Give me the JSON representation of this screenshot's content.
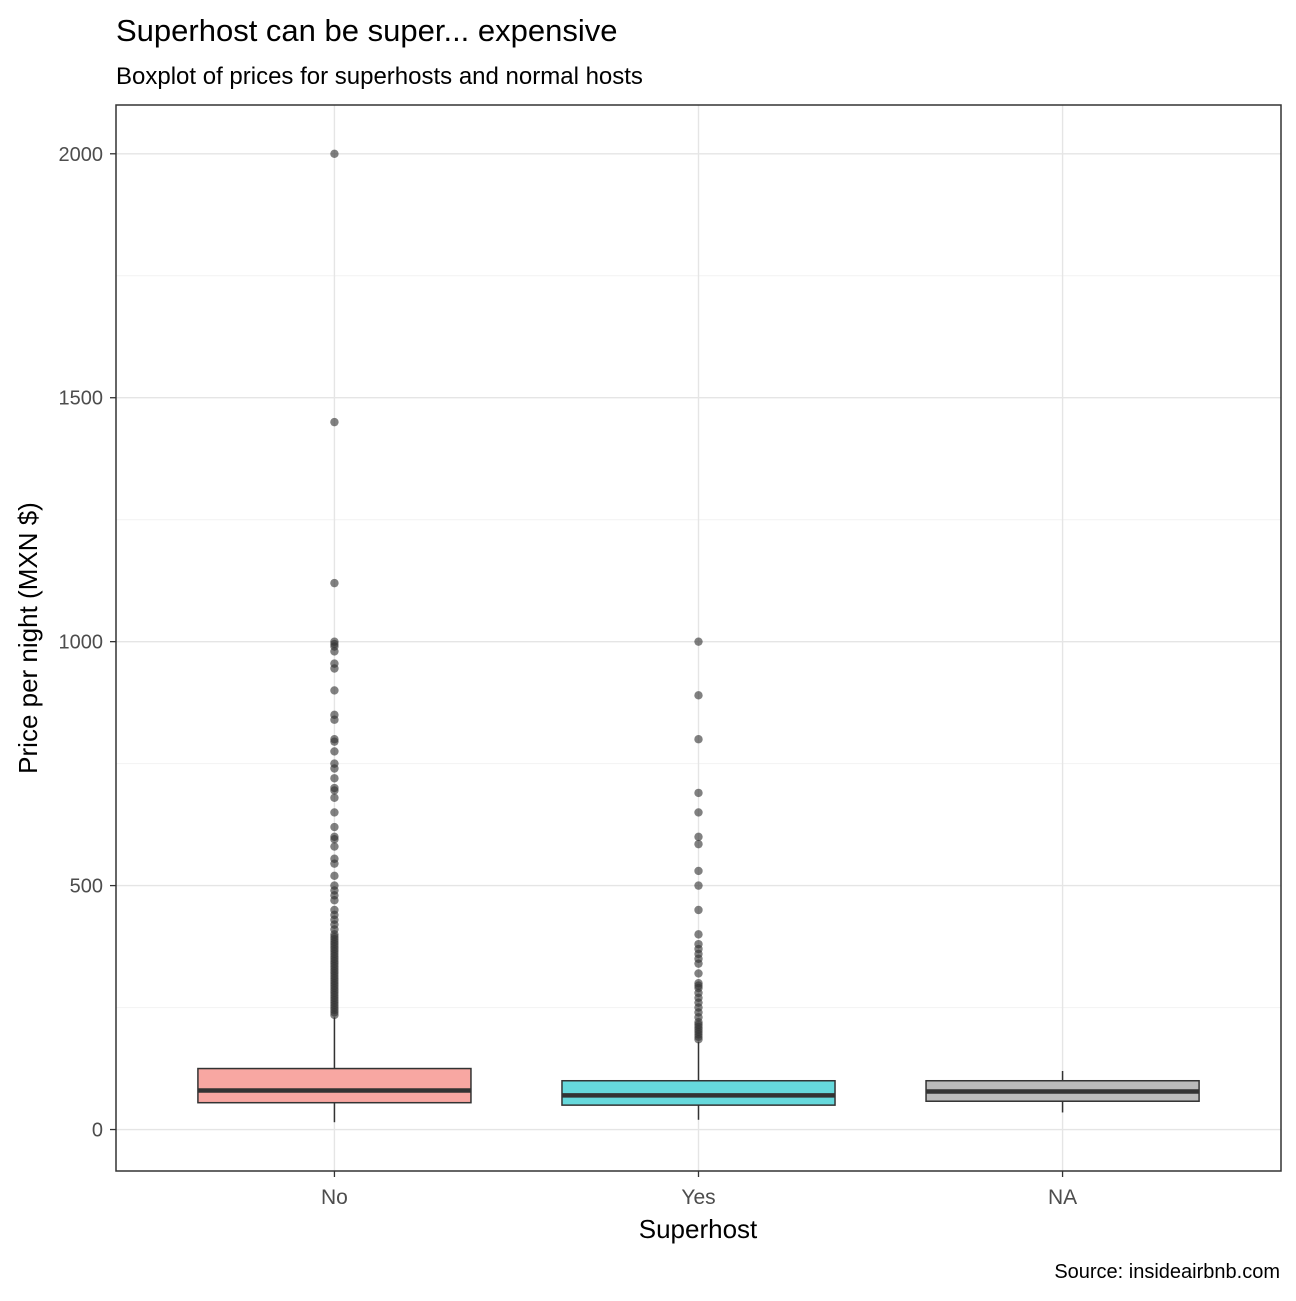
{
  "chart_data": {
    "type": "boxplot",
    "title": "Superhost can be super... expensive",
    "subtitle": "Boxplot of prices for superhosts and normal hosts",
    "xlabel": "Superhost",
    "ylabel": "Price per night (MXN $)",
    "caption": "Source: insideairbnb.com",
    "ylim": [
      -85,
      2100
    ],
    "y_ticks": [
      0,
      500,
      1000,
      1500,
      2000
    ],
    "y_minor_ticks": [
      250,
      750,
      1250,
      1750
    ],
    "categories": [
      "No",
      "Yes",
      "NA"
    ],
    "boxes": [
      {
        "name": "No",
        "color": "#f8a7a2",
        "min": 15,
        "q1": 55,
        "median": 80,
        "q3": 125,
        "max": 230,
        "outliers": [
          2000,
          1450,
          1120,
          1000,
          995,
          990,
          980,
          955,
          945,
          900,
          850,
          840,
          800,
          795,
          775,
          750,
          740,
          720,
          700,
          695,
          680,
          650,
          620,
          600,
          595,
          580,
          555,
          545,
          520,
          500,
          490,
          480,
          470,
          450,
          440,
          430,
          420,
          410,
          400,
          395,
          390,
          385,
          380,
          375,
          370,
          365,
          360,
          355,
          350,
          345,
          340,
          335,
          330,
          325,
          320,
          315,
          310,
          305,
          300,
          295,
          290,
          285,
          280,
          275,
          270,
          265,
          260,
          255,
          250,
          245,
          240,
          235
        ]
      },
      {
        "name": "Yes",
        "color": "#66d9dc",
        "min": 20,
        "q1": 50,
        "median": 70,
        "q3": 100,
        "max": 180,
        "outliers": [
          1000,
          890,
          800,
          690,
          650,
          600,
          585,
          530,
          500,
          450,
          400,
          380,
          370,
          360,
          350,
          340,
          320,
          300,
          295,
          290,
          280,
          270,
          260,
          250,
          240,
          230,
          220,
          215,
          210,
          205,
          200,
          195,
          190,
          185
        ]
      },
      {
        "name": "NA",
        "color": "#bbbbbb",
        "min": 35,
        "q1": 58,
        "median": 78,
        "q3": 100,
        "max": 120,
        "outliers": []
      }
    ]
  }
}
